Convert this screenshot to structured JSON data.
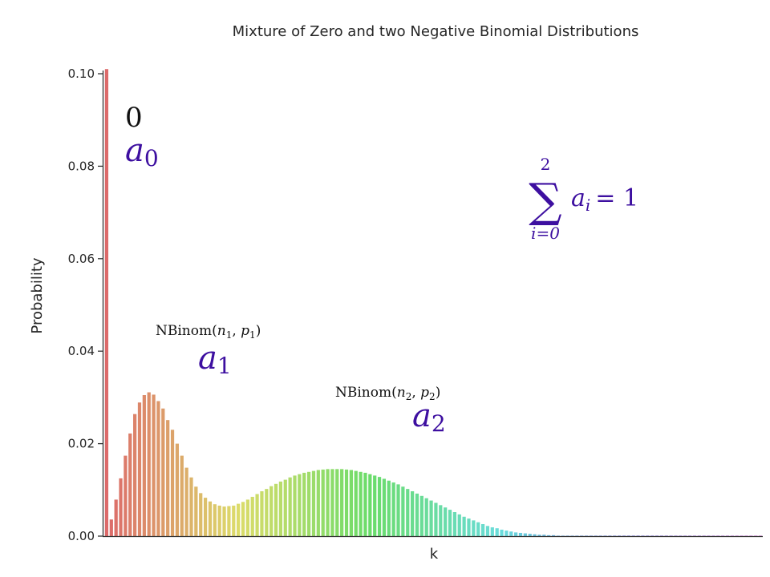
{
  "chart_data": {
    "type": "bar",
    "title": "Mixture of Zero and two Negative Binomial Distributions",
    "xlabel": "k",
    "ylabel": "Probability",
    "ylim": [
      0,
      0.1
    ],
    "yticks": [
      "0.00",
      "0.02",
      "0.04",
      "0.06",
      "0.08",
      "0.10"
    ],
    "grid": false,
    "palette": "husl rainbow (red → orange → olive → green → teal → blue → violet)",
    "k": [
      0,
      1,
      2,
      3,
      4,
      5,
      6,
      7,
      8,
      9,
      10,
      11,
      12,
      13,
      14,
      15,
      16,
      17,
      18,
      19,
      20,
      21,
      22,
      23,
      24,
      25,
      26,
      27,
      28,
      29,
      30,
      31,
      32,
      33,
      34,
      35,
      36,
      37,
      38,
      39,
      40,
      41,
      42,
      43,
      44,
      45,
      46,
      47,
      48,
      49,
      50,
      51,
      52,
      53,
      54,
      55,
      56,
      57,
      58,
      59,
      60,
      61,
      62,
      63,
      64,
      65,
      66,
      67,
      68,
      69,
      70,
      71,
      72,
      73,
      74,
      75,
      76,
      77,
      78,
      79,
      80,
      81,
      82,
      83,
      84,
      85,
      86,
      87,
      88,
      89,
      90,
      91,
      92,
      93,
      94,
      95,
      96,
      97,
      98,
      99,
      100,
      101,
      102,
      103,
      104,
      105,
      106,
      107,
      108,
      109,
      110,
      111,
      112,
      113,
      114,
      115,
      116,
      117,
      118,
      119,
      120,
      121,
      122,
      123,
      124,
      125,
      126,
      127,
      128,
      129,
      130,
      131,
      132,
      133,
      134,
      135,
      136,
      137,
      138,
      139
    ],
    "values": [
      0.101,
      0.0036,
      0.0079,
      0.0125,
      0.0174,
      0.0222,
      0.0264,
      0.0289,
      0.0305,
      0.0311,
      0.0306,
      0.0292,
      0.0276,
      0.0251,
      0.023,
      0.02,
      0.0174,
      0.0148,
      0.0127,
      0.0107,
      0.0093,
      0.0083,
      0.0075,
      0.0069,
      0.0066,
      0.0064,
      0.0065,
      0.0066,
      0.007,
      0.0074,
      0.0079,
      0.0085,
      0.0091,
      0.0097,
      0.0102,
      0.0108,
      0.0113,
      0.0118,
      0.0122,
      0.0127,
      0.0131,
      0.0134,
      0.0137,
      0.0139,
      0.0141,
      0.0143,
      0.0144,
      0.0145,
      0.0145,
      0.0145,
      0.0145,
      0.0144,
      0.0143,
      0.0141,
      0.0139,
      0.0137,
      0.0134,
      0.0131,
      0.0128,
      0.0124,
      0.012,
      0.0116,
      0.0112,
      0.0107,
      0.0102,
      0.0097,
      0.0092,
      0.0087,
      0.0082,
      0.0077,
      0.0072,
      0.0067,
      0.0062,
      0.0057,
      0.0052,
      0.0047,
      0.0042,
      0.0038,
      0.0034,
      0.003,
      0.0026,
      0.0022,
      0.0019,
      0.0017,
      0.0014,
      0.0012,
      0.001,
      0.0008,
      0.0007,
      0.0006,
      0.0005,
      0.0004,
      0.0003,
      0.0003,
      0.0002,
      0.0002,
      0.0001,
      0.0001,
      0.0001,
      0.0001,
      0.0001,
      0.0001,
      0.0001,
      0.0001,
      0.0001,
      0.0001,
      0.0001,
      0.0001,
      0.0001,
      0.0001,
      0.0001,
      0.0001,
      0.0001,
      0.0001,
      0.0001,
      0.0001,
      0.0001,
      0.0001,
      0.0001,
      0.0001,
      0.0001,
      0.0001,
      0.0001,
      0.0001,
      0.0001,
      0.0001,
      0.0001,
      0.0001,
      0.0001,
      0.0001,
      0.0001,
      0.0001,
      0.0001,
      0.0001,
      0.0001,
      0.0001,
      0.0001,
      0.0001,
      0.0001,
      0.0001
    ],
    "annotations": {
      "zero_component": {
        "label": "0",
        "weight": "a",
        "weight_sub": "0"
      },
      "nb1_component": {
        "dist": "NBinom",
        "n": "n",
        "n_sub": "1",
        "p": "p",
        "p_sub": "1",
        "weight": "a",
        "weight_sub": "1"
      },
      "nb2_component": {
        "dist": "NBinom",
        "n": "n",
        "n_sub": "2",
        "p": "p",
        "p_sub": "2",
        "weight": "a",
        "weight_sub": "2"
      },
      "constraint": {
        "upper": "2",
        "lower": "i=0",
        "sigma": "∑",
        "term": "a",
        "term_sub": "i",
        "rhs": "= 1"
      }
    },
    "colors": {
      "annotation_purple": "#3d0fa0",
      "annotation_black": "#111111",
      "axis": "#333333"
    }
  }
}
